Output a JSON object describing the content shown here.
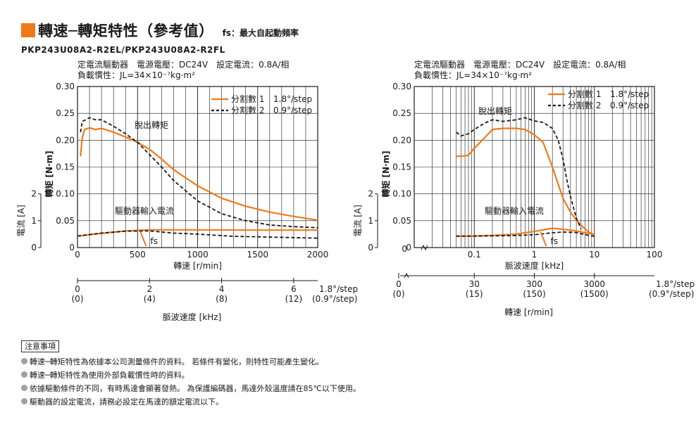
{
  "header": {
    "title": "轉速─轉矩特性（參考值）",
    "fs_note": "fs：最大自起動頻率",
    "model": "PKP243U08A2-R2EL/PKP243U08A2-R2FL"
  },
  "colors": {
    "accent": "#f07a1a",
    "series2": "#1a1a1a",
    "grid": "#1a1a1a"
  },
  "chart_data": [
    {
      "type": "line",
      "info": [
        "定電流驅動器　電源電壓：DC24V　設定電流：0.8A/相",
        "負載慣性：JL=34×10⁻⁷kg·m²"
      ],
      "ylabel": "轉矩 [N·m]",
      "y2label": "電流 [A]",
      "xlabel": "轉速 [r/min]",
      "x2label": "脈波速度 [kHz]",
      "xlim": [
        0,
        2000
      ],
      "ylim": [
        0,
        0.3
      ],
      "y2lim": [
        0,
        2
      ],
      "xticks": [
        "0",
        "500",
        "1000",
        "1500",
        "2000"
      ],
      "yticks": [
        "0",
        "0.05",
        "0.10",
        "0.15",
        "0.20",
        "0.25",
        "0.30"
      ],
      "y2ticks": [
        "0",
        "1",
        "2"
      ],
      "pulse_axis": {
        "ticks": [
          {
            "v": 0,
            "l1": "0",
            "l2": "(0)"
          },
          {
            "v": 600,
            "l1": "2",
            "l2": "(4)"
          },
          {
            "v": 1200,
            "l1": "4",
            "l2": "(8)"
          },
          {
            "v": 1800,
            "l1": "6",
            "l2": "(12)"
          }
        ],
        "end1": "1.8°/step",
        "end2": "(0.9°/step)"
      },
      "legend": [
        {
          "name": "分割數 1",
          "step": "1.8°/step",
          "style": "solid"
        },
        {
          "name": "分割數 2",
          "step": "0.9°/step",
          "style": "dashed"
        }
      ],
      "annotations": {
        "pullout": "脫出轉矩",
        "driver_current": "驅動器輸入電流",
        "fs": "fs"
      },
      "series": [
        {
          "name": "分割數 1",
          "style": "solid",
          "kind": "torque",
          "x": [
            25,
            40,
            60,
            100,
            150,
            200,
            300,
            400,
            500,
            600,
            700,
            800,
            1000,
            1200,
            1400,
            1600,
            1800,
            2000
          ],
          "y": [
            0.17,
            0.205,
            0.22,
            0.223,
            0.22,
            0.222,
            0.215,
            0.206,
            0.196,
            0.183,
            0.165,
            0.145,
            0.115,
            0.092,
            0.077,
            0.066,
            0.058,
            0.051
          ]
        },
        {
          "name": "分割數 2",
          "style": "dashed",
          "kind": "torque",
          "x": [
            25,
            40,
            60,
            100,
            150,
            200,
            300,
            400,
            500,
            600,
            700,
            800,
            1000,
            1200,
            1400,
            1600,
            1800,
            2000
          ],
          "y": [
            0.215,
            0.235,
            0.237,
            0.242,
            0.238,
            0.238,
            0.226,
            0.212,
            0.196,
            0.173,
            0.15,
            0.125,
            0.087,
            0.063,
            0.05,
            0.042,
            0.039,
            0.037
          ]
        },
        {
          "name": "分割數 1",
          "style": "solid",
          "kind": "current",
          "x": [
            0,
            200,
            400,
            600,
            800,
            1000,
            1500,
            2000
          ],
          "y": [
            0.43,
            0.53,
            0.62,
            0.66,
            0.66,
            0.66,
            0.65,
            0.65
          ]
        },
        {
          "name": "分割數 2",
          "style": "dashed",
          "kind": "current",
          "x": [
            0,
            200,
            400,
            600,
            800,
            1000,
            1300,
            1500,
            2000
          ],
          "y": [
            0.43,
            0.54,
            0.61,
            0.62,
            0.54,
            0.5,
            0.42,
            0.4,
            0.35
          ]
        }
      ],
      "fs": {
        "x": 560
      }
    },
    {
      "type": "line",
      "info": [
        "定電流驅動器　電源電壓：DC24V　設定電流：0.8A/相",
        "負載慣性：JL=34×10⁻⁷kg·m²"
      ],
      "ylabel": "轉矩 [N·m]",
      "y2label": "電流 [A]",
      "xlabel": "脈波速度 [kHz]",
      "x2label": "轉速 [r/min]",
      "xscale": "log",
      "xlim": [
        0.01,
        100
      ],
      "ylim": [
        0,
        0.3
      ],
      "y2lim": [
        0,
        2
      ],
      "xticks": [
        {
          "v": 0.1,
          "l": "0.1"
        },
        {
          "v": 1,
          "l": "1"
        },
        {
          "v": 10,
          "l": "10"
        },
        {
          "v": 100,
          "l": "100"
        }
      ],
      "x0label": "0",
      "yticks": [
        "0",
        "0.05",
        "0.10",
        "0.15",
        "0.20",
        "0.25",
        "0.30"
      ],
      "y2ticks": [
        "0",
        "1",
        "2"
      ],
      "speed_axis": {
        "ticks": [
          {
            "v": 0.1,
            "l1": "30",
            "l2": "(15)"
          },
          {
            "v": 1,
            "l1": "300",
            "l2": "(150)"
          },
          {
            "v": 10,
            "l1": "3000",
            "l2": "(1500)"
          }
        ],
        "zero1": "0",
        "zero2": "(0)",
        "end1": "1.8°/step",
        "end2": "(0.9°/step)"
      },
      "legend": [
        {
          "name": "分割數 1",
          "step": "1.8°/step",
          "style": "solid"
        },
        {
          "name": "分割數 2",
          "step": "0.9°/step",
          "style": "dashed"
        }
      ],
      "annotations": {
        "pullout": "脫出轉矩",
        "driver_current": "驅動器輸入電流",
        "fs": "fs"
      },
      "series": [
        {
          "name": "分割數 1",
          "style": "solid",
          "kind": "torque",
          "x": [
            0.05,
            0.06,
            0.08,
            0.1,
            0.15,
            0.2,
            0.3,
            0.5,
            0.7,
            1.0,
            1.4,
            2.0,
            2.5,
            3.0,
            4.0,
            5.0,
            6.0,
            7.0,
            8.0,
            10.0
          ],
          "y": [
            0.17,
            0.17,
            0.172,
            0.185,
            0.205,
            0.22,
            0.222,
            0.222,
            0.22,
            0.21,
            0.196,
            0.15,
            0.118,
            0.092,
            0.066,
            0.051,
            0.042,
            0.035,
            0.029,
            0.023
          ]
        },
        {
          "name": "分割數 2",
          "style": "dashed",
          "kind": "torque",
          "x": [
            0.05,
            0.06,
            0.08,
            0.1,
            0.15,
            0.2,
            0.3,
            0.5,
            0.7,
            1.0,
            1.4,
            2.0,
            2.5,
            3.0,
            3.5,
            4.0,
            5.0,
            6.0
          ],
          "y": [
            0.215,
            0.208,
            0.212,
            0.22,
            0.232,
            0.238,
            0.235,
            0.238,
            0.242,
            0.236,
            0.233,
            0.222,
            0.2,
            0.165,
            0.125,
            0.095,
            0.055,
            0.035
          ]
        },
        {
          "name": "分割數 1",
          "style": "solid",
          "kind": "current",
          "x": [
            0.05,
            0.1,
            0.3,
            0.5,
            1.0,
            2.0,
            3.0,
            5.0,
            7.0,
            10.0
          ],
          "y": [
            0.42,
            0.43,
            0.47,
            0.5,
            0.6,
            0.72,
            0.68,
            0.62,
            0.55,
            0.5
          ]
        },
        {
          "name": "分割數 2",
          "style": "dashed",
          "kind": "current",
          "x": [
            0.05,
            0.1,
            0.3,
            0.5,
            1.0,
            2.0,
            3.0,
            5.0,
            7.0,
            10.0
          ],
          "y": [
            0.43,
            0.43,
            0.44,
            0.45,
            0.48,
            0.55,
            0.58,
            0.56,
            0.48,
            0.42
          ]
        }
      ],
      "fs": {
        "x": 1.5
      }
    }
  ],
  "notes": {
    "title": "注意事項",
    "items": [
      "轉速─轉矩特性為依據本公司測量條件的資料。 若條件有變化，則特性可能產生變化。",
      "轉速─轉矩特性為使用外部負載慣性時的資料。",
      "依據驅動條件的不同，有時馬達會顯著發熱。 為保護編碼器，馬達外殼溫度請在85℃以下使用。",
      "驅動器的設定電流，請務必設定在馬達的額定電流以下。"
    ]
  }
}
